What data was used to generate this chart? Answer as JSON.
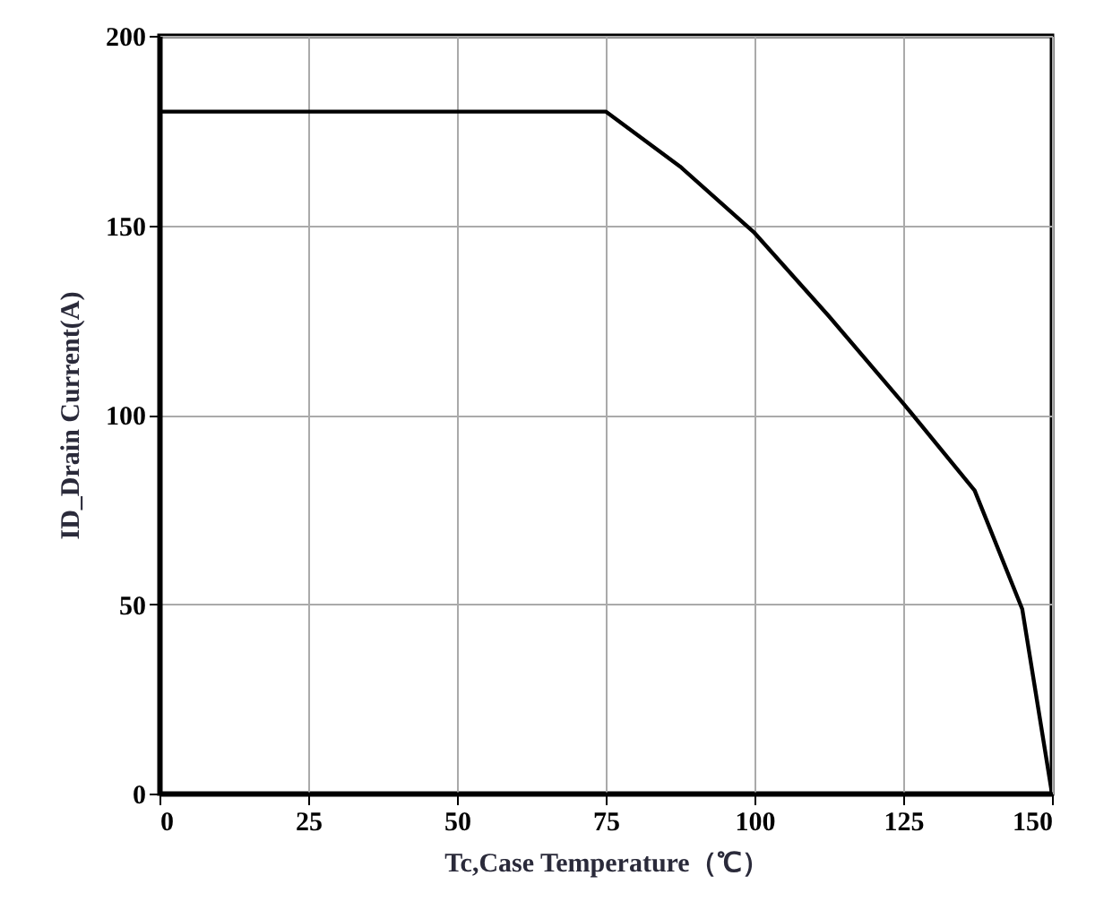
{
  "chart_data": {
    "type": "line",
    "xlabel": "Tc,Case Temperature（℃）",
    "ylabel": "ID_Drain Current(A)",
    "x": [
      0,
      75,
      87.5,
      100,
      112.5,
      125,
      137,
      145,
      150
    ],
    "series": [
      {
        "color": "#000000",
        "values": [
          180,
          180,
          165.5,
          148,
          126,
          103,
          80,
          48.7,
          0
        ]
      }
    ],
    "xlim": [
      0,
      150
    ],
    "xticks": [
      0,
      25,
      50,
      75,
      100,
      125,
      150
    ],
    "ylim": [
      0,
      200
    ],
    "yticks": [
      0,
      50,
      100,
      150,
      200
    ],
    "grid": true
  }
}
